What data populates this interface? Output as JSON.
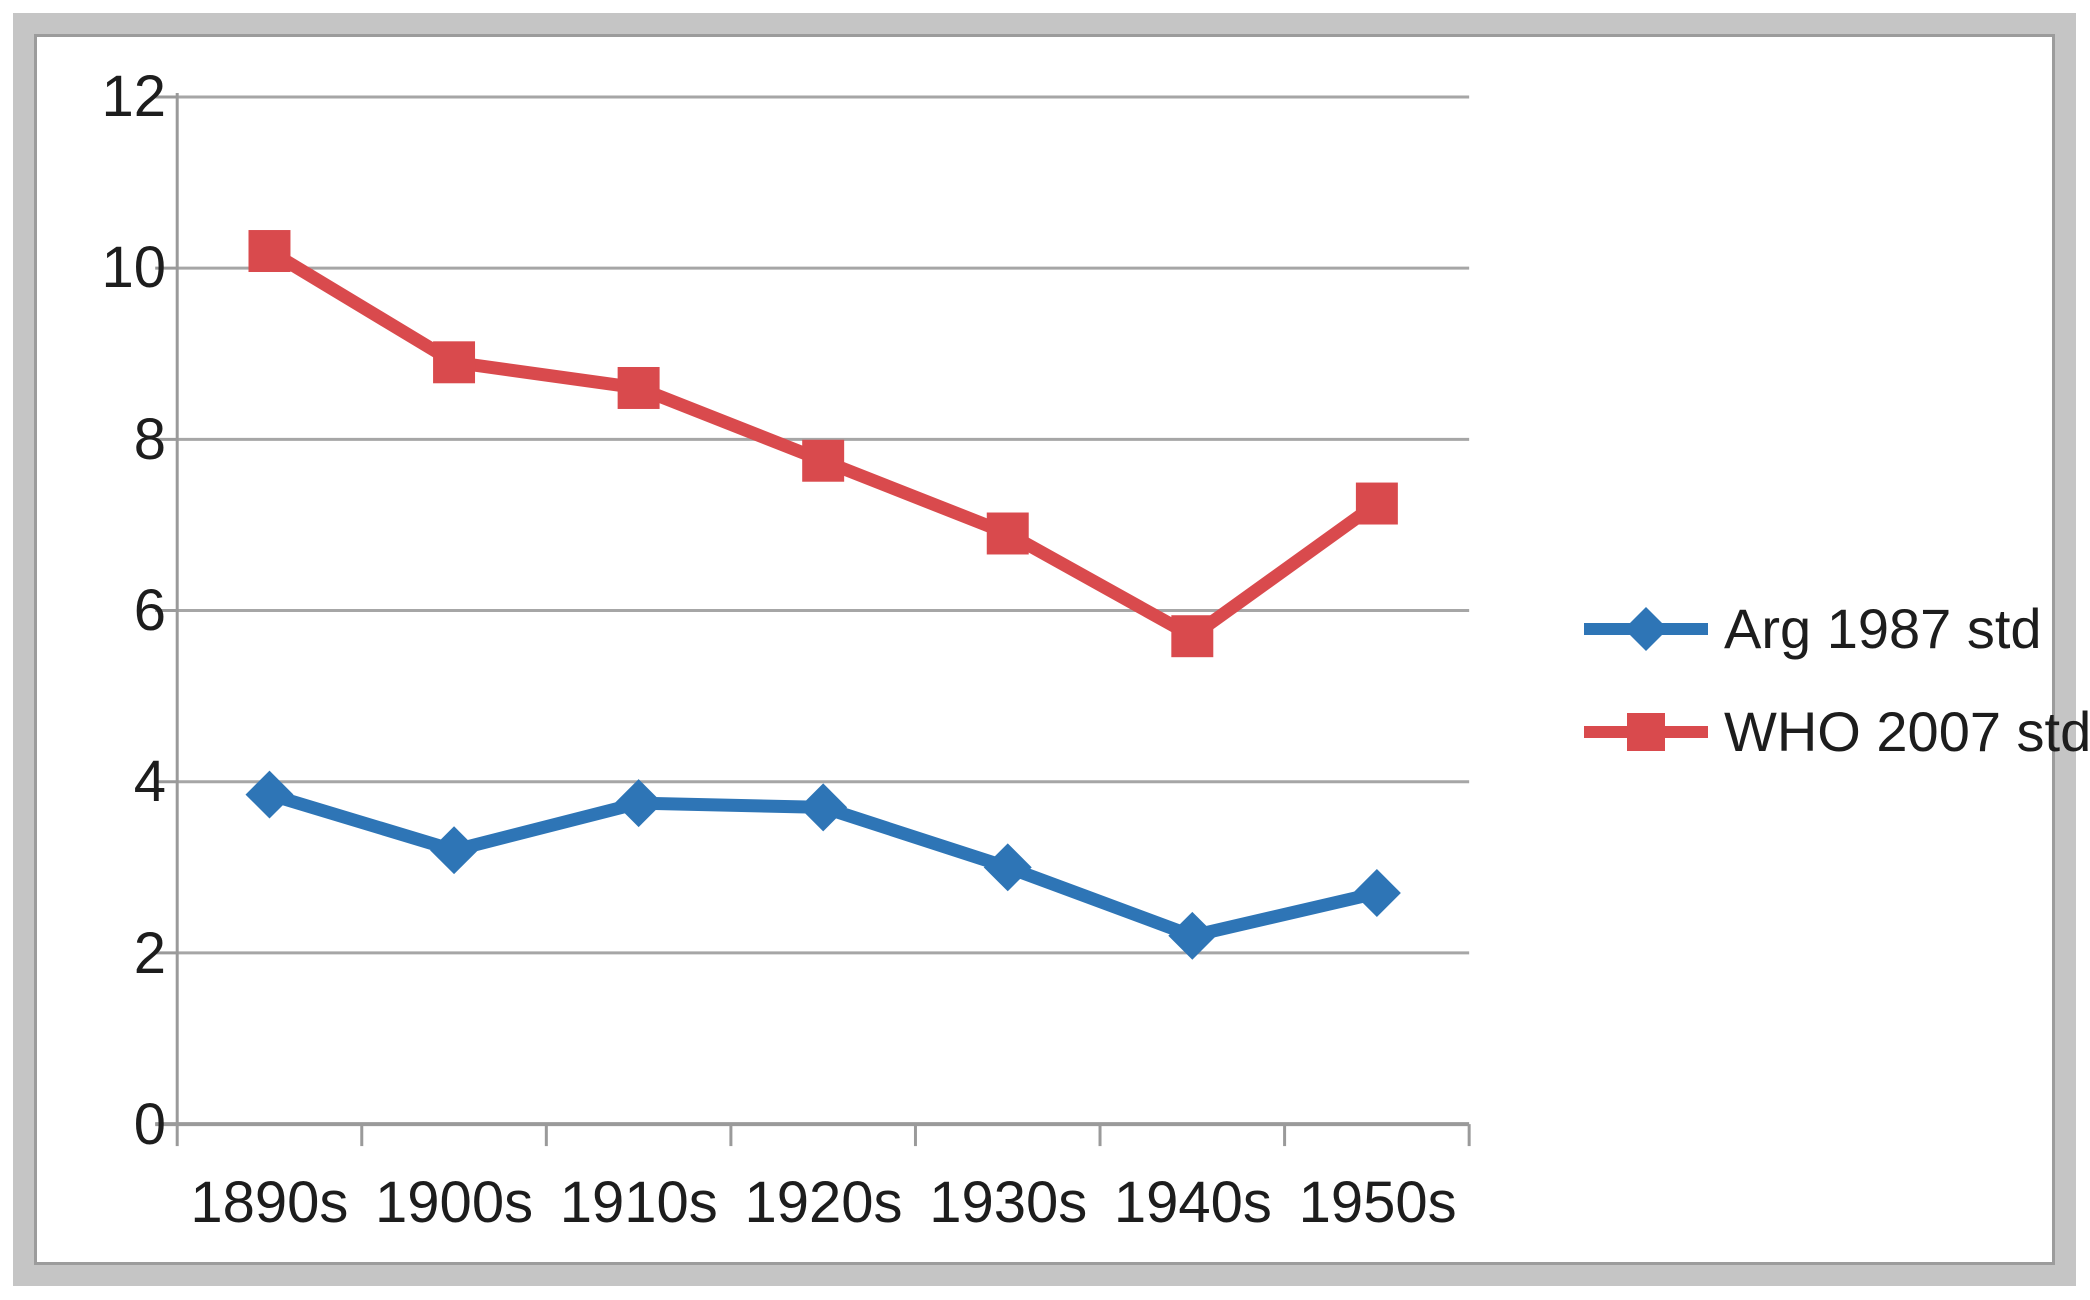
{
  "chart_data": {
    "type": "line",
    "title": "",
    "xlabel": "",
    "ylabel": "",
    "categories": [
      "1890s",
      "1900s",
      "1910s",
      "1920s",
      "1930s",
      "1940s",
      "1950s"
    ],
    "series": [
      {
        "name": "Arg 1987 std",
        "color": "#2e75b6",
        "marker": "diamond",
        "values": [
          3.85,
          3.2,
          3.75,
          3.7,
          3.0,
          2.2,
          2.7
        ]
      },
      {
        "name": "WHO 2007 std",
        "color": "#d94a4d",
        "marker": "square",
        "values": [
          10.2,
          8.9,
          8.6,
          7.75,
          6.9,
          5.7,
          7.25
        ]
      }
    ],
    "ylim": [
      0,
      12
    ],
    "yticks": [
      0,
      2,
      4,
      6,
      8,
      10,
      12
    ],
    "grid": true,
    "legend_position": "right"
  },
  "style_colors": {
    "gridline": "#a6a6a6",
    "axis": "#9a9a9a",
    "text": "#1d1d1d",
    "frame_band": "#c5c5c5",
    "frame_inner_line": "#9c9c9c",
    "background": "#ffffff"
  }
}
